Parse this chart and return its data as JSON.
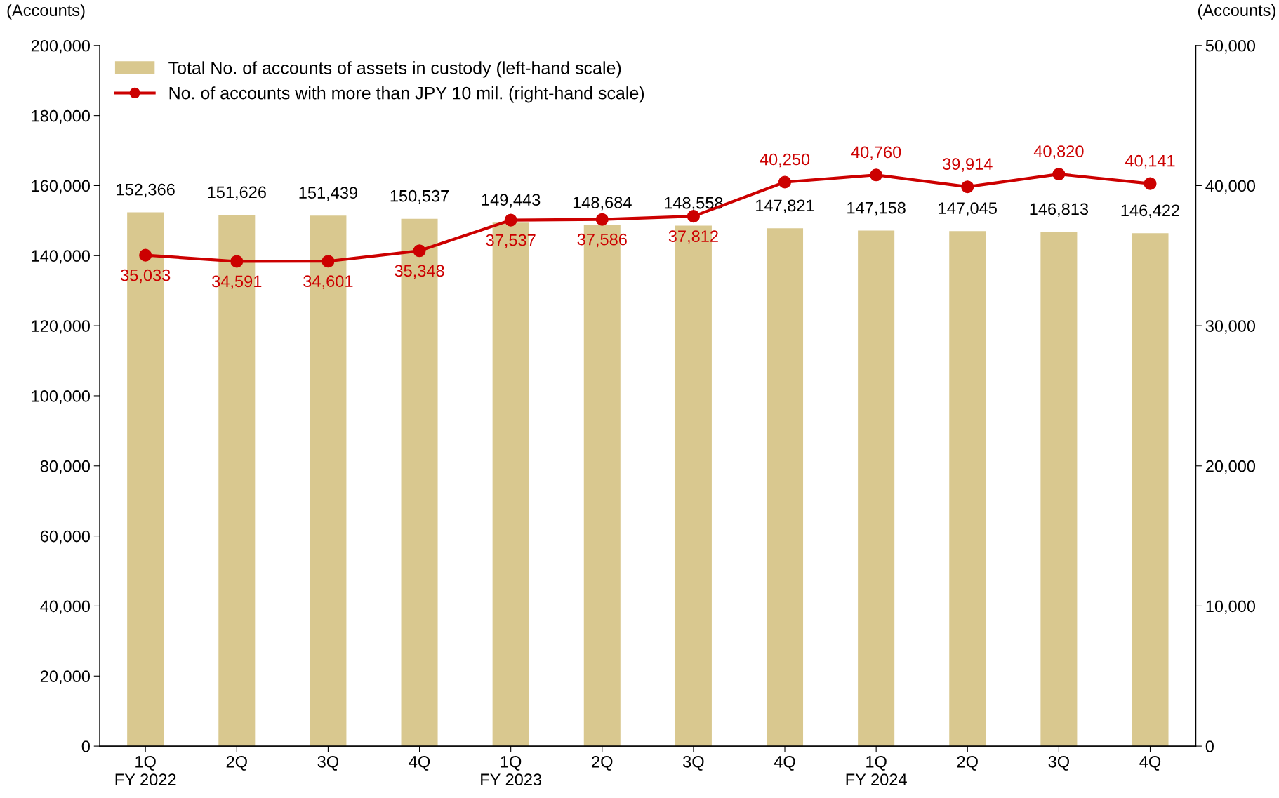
{
  "chart_data": {
    "type": "bar",
    "ylabel": "(Accounts)",
    "y2label": "(Accounts)",
    "categories": [
      "1Q\nFY 2022",
      "2Q",
      "3Q",
      "4Q",
      "1Q\nFY 2023",
      "2Q",
      "3Q",
      "4Q",
      "1Q\nFY 2024",
      "2Q",
      "3Q",
      "4Q"
    ],
    "series": [
      {
        "name": "Total No. of accounts of assets in custody (left-hand scale)",
        "color": "#d9c88f",
        "values": [
          152366,
          151626,
          151439,
          150537,
          149443,
          148684,
          148558,
          147821,
          147158,
          147045,
          146813,
          146422
        ],
        "value_labels": [
          "152,366",
          "151,626",
          "151,439",
          "150,537",
          "149,443",
          "148,684",
          "148,558",
          "147,821",
          "147,158",
          "147,045",
          "146,813",
          "146,422"
        ]
      },
      {
        "name": "No. of accounts with more than JPY 10 mil. (right-hand scale)",
        "type": "line",
        "axis": "y2",
        "color": "#cc0000",
        "marker": "circle",
        "values": [
          35033,
          34591,
          34601,
          35348,
          37537,
          37586,
          37812,
          40250,
          40760,
          39914,
          40820,
          40141
        ],
        "value_labels": [
          "35,033",
          "34,591",
          "34,601",
          "35,348",
          "37,537",
          "37,586",
          "37,812",
          "40,250",
          "40,760",
          "39,914",
          "40,820",
          "40,141"
        ]
      }
    ],
    "ylim": [
      0,
      200000
    ],
    "yticks": [
      {
        "value": 0,
        "label": "0"
      },
      {
        "value": 20000,
        "label": "20,000"
      },
      {
        "value": 40000,
        "label": "40,000"
      },
      {
        "value": 60000,
        "label": "60,000"
      },
      {
        "value": 80000,
        "label": "80,000"
      },
      {
        "value": 100000,
        "label": "100,000"
      },
      {
        "value": 120000,
        "label": "120,000"
      },
      {
        "value": 140000,
        "label": "140,000"
      },
      {
        "value": 160000,
        "label": "160,000"
      },
      {
        "value": 180000,
        "label": "180,000"
      },
      {
        "value": 200000,
        "label": "200,000"
      }
    ],
    "y2lim": [
      0,
      50000
    ],
    "y2ticks": [
      {
        "value": 0,
        "label": "0"
      },
      {
        "value": 10000,
        "label": "10,000"
      },
      {
        "value": 20000,
        "label": "20,000"
      },
      {
        "value": 30000,
        "label": "30,000"
      },
      {
        "value": 40000,
        "label": "40,000"
      },
      {
        "value": 50000,
        "label": "50,000"
      }
    ],
    "grid": false,
    "legend": "top left"
  }
}
